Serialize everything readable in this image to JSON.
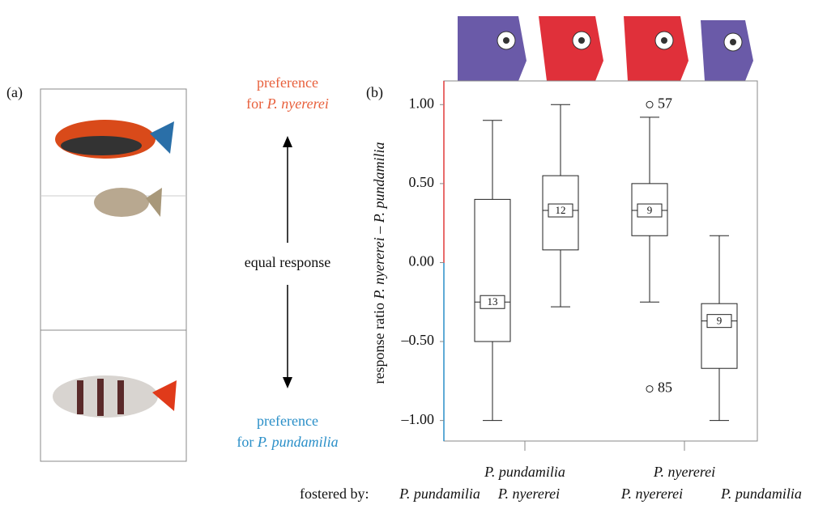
{
  "panel_a": {
    "label": "(a)",
    "top_line1": "preference",
    "top_line2_prefix": "for ",
    "top_line2_name": "P. nyererei",
    "middle": "equal response",
    "bottom_line1": "preference",
    "bottom_line2_prefix": "for ",
    "bottom_line2_name": "P. pundamilia"
  },
  "chart_data": {
    "type": "box",
    "panel_label": "(b)",
    "ylabel": [
      "response ratio ",
      "P. nyererei",
      " – ",
      "P. pundamilia"
    ],
    "groups": [
      "P. pundamilia",
      "P. nyererei"
    ],
    "fostered_label": "fostered by:",
    "categories": [
      "P. pundamilia",
      "P. nyererei",
      "P. nyererei",
      "P. pundamilia"
    ],
    "whisker_high": [
      0.9,
      1.0,
      0.92,
      0.17
    ],
    "q3": [
      0.4,
      0.55,
      0.5,
      -0.26
    ],
    "median": [
      -0.25,
      0.33,
      0.33,
      -0.37
    ],
    "q1": [
      -0.5,
      0.08,
      0.17,
      -0.67
    ],
    "whisker_low": [
      -1.0,
      -0.28,
      -0.25,
      -1.0
    ],
    "n": [
      13,
      12,
      9,
      9
    ],
    "outliers": [
      {
        "box": 2,
        "value": 1.0,
        "label": "57"
      },
      {
        "box": 2,
        "value": -0.8,
        "label": "85"
      }
    ],
    "ylim": [
      -1.13,
      1.15
    ],
    "yticks": [
      {
        "value": 1,
        "label": "1.00"
      },
      {
        "value": 0.5,
        "label": "0.50"
      },
      {
        "value": 0,
        "label": "0.00"
      },
      {
        "value": -0.5,
        "label": "–0.50"
      },
      {
        "value": -1,
        "label": "–1.00"
      }
    ],
    "color": "#222222"
  }
}
